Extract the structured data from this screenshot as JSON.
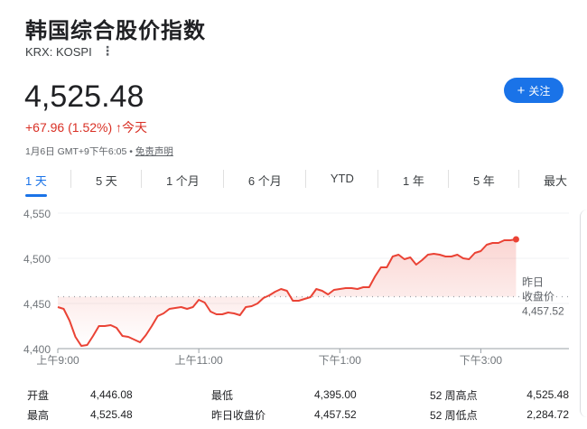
{
  "title": "韩国综合股价指数",
  "ticker": "KRX: KOSPI",
  "more_icon": "⋮",
  "price": "4,525.48",
  "change": "+67.96 (1.52%)",
  "change_arrow": "↑",
  "change_period": "今天",
  "meta_time": "1月6日 GMT+9下午6:05 • ",
  "meta_disclaimer": "免责声明",
  "follow": {
    "icon": "+",
    "label": "关注"
  },
  "tabs": [
    "1 天",
    "5 天",
    "1 个月",
    "6 个月",
    "YTD",
    "1 年",
    "5 年",
    "最大"
  ],
  "active_tab": 0,
  "colors": {
    "line": "#ea4335",
    "accent": "#1a73e8",
    "down": "#d93025"
  },
  "chart_data": {
    "type": "area",
    "x_ticks": [
      "上午9:00",
      "上午11:00",
      "下午1:00",
      "下午3:00"
    ],
    "y_ticks": [
      "4,550",
      "4,500",
      "4,450",
      "4,400"
    ],
    "ylim": [
      4400,
      4550
    ],
    "xlim": [
      "09:00",
      "16:15"
    ],
    "grid": true,
    "reference": {
      "label1": "昨日",
      "label2": "收盘价",
      "value": 4457.52,
      "value_label": "4,457.52"
    },
    "x": [
      "09:00",
      "09:05",
      "09:10",
      "09:15",
      "09:20",
      "09:25",
      "09:30",
      "09:35",
      "09:40",
      "09:45",
      "09:50",
      "09:55",
      "10:00",
      "10:05",
      "10:10",
      "10:15",
      "10:20",
      "10:25",
      "10:30",
      "10:35",
      "10:40",
      "10:45",
      "10:50",
      "10:55",
      "11:00",
      "11:05",
      "11:10",
      "11:15",
      "11:20",
      "11:25",
      "11:30",
      "11:35",
      "11:40",
      "11:45",
      "11:50",
      "11:55",
      "12:00",
      "12:05",
      "12:10",
      "12:15",
      "12:20",
      "12:25",
      "12:30",
      "12:35",
      "12:40",
      "12:45",
      "12:50",
      "12:55",
      "13:00",
      "13:05",
      "13:10",
      "13:15",
      "13:20",
      "13:25",
      "13:30",
      "13:35",
      "13:40",
      "13:45",
      "13:50",
      "13:55",
      "14:00",
      "14:05",
      "14:10",
      "14:15",
      "14:20",
      "14:25",
      "14:30",
      "14:35",
      "14:40",
      "14:45",
      "14:50",
      "14:55",
      "15:00",
      "15:05",
      "15:10",
      "15:15",
      "15:20",
      "15:25",
      "15:30"
    ],
    "values": [
      4446,
      4444,
      4431,
      4413,
      4403,
      4404,
      4414,
      4425,
      4425,
      4426,
      4423,
      4414,
      4413,
      4410,
      4407,
      4415,
      4425,
      4436,
      4439,
      4444,
      4445,
      4446,
      4444,
      4446,
      4454,
      4451,
      4441,
      4438,
      4438,
      4440,
      4439,
      4437,
      4446,
      4447,
      4450,
      4456,
      4459,
      4463,
      4466,
      4464,
      4453,
      4453,
      4455,
      4457,
      4466,
      4464,
      4460,
      4465,
      4466,
      4467,
      4467,
      4466,
      4468,
      4468,
      4480,
      4490,
      4490,
      4502,
      4504,
      4499,
      4501,
      4493,
      4498,
      4504,
      4505,
      4504,
      4502,
      4502,
      4504,
      4500,
      4499,
      4506,
      4508,
      4515,
      4517,
      4517,
      4520,
      4520,
      4521
    ]
  },
  "stats": [
    [
      {
        "k": "开盘",
        "v": "4,446.08"
      },
      {
        "k": "最低",
        "v": "4,395.00"
      },
      {
        "k": "52 周高点",
        "v": "4,525.48"
      }
    ],
    [
      {
        "k": "最高",
        "v": "4,525.48"
      },
      {
        "k": "昨日收盘价",
        "v": "4,457.52"
      },
      {
        "k": "52 周低点",
        "v": "2,284.72"
      }
    ]
  ]
}
